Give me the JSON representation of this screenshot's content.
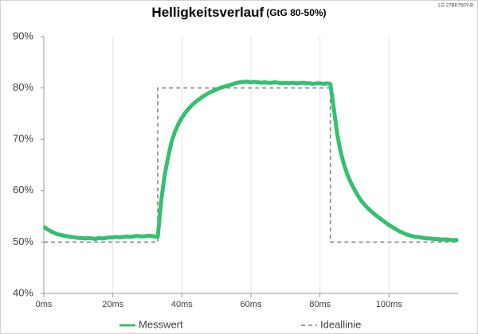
{
  "chart_data": {
    "type": "line",
    "title": "Helligkeitsverlauf",
    "subtitle": "(GtG 80-50%)",
    "annotation": "LG 27BK750Y-B",
    "xlim": [
      0,
      120
    ],
    "ylim": [
      40,
      90
    ],
    "xticks": [
      {
        "value": 0,
        "label": "0ms"
      },
      {
        "value": 20,
        "label": "20ms"
      },
      {
        "value": 40,
        "label": "40ms"
      },
      {
        "value": 60,
        "label": "60ms"
      },
      {
        "value": 80,
        "label": "80ms"
      },
      {
        "value": 100,
        "label": "100ms"
      }
    ],
    "yticks": [
      {
        "value": 40,
        "label": "40%"
      },
      {
        "value": 50,
        "label": "50%"
      },
      {
        "value": 60,
        "label": "60%"
      },
      {
        "value": 70,
        "label": "70%"
      },
      {
        "value": 80,
        "label": "80%"
      },
      {
        "value": 90,
        "label": "90%"
      }
    ],
    "grid": true,
    "legend": "bottom",
    "series": [
      {
        "name": "Messwert",
        "color": "#34c070",
        "dash": false,
        "x": [
          0,
          1,
          2,
          3,
          4,
          5,
          6,
          7,
          8,
          9,
          10,
          11,
          12,
          13,
          14,
          15,
          16,
          17,
          18,
          19,
          20,
          21,
          22,
          23,
          24,
          25,
          26,
          27,
          28,
          29,
          30,
          31,
          32,
          33,
          34,
          35,
          36,
          37,
          38,
          39,
          40,
          41,
          42,
          43,
          44,
          45,
          46,
          47,
          48,
          49,
          50,
          51,
          52,
          53,
          54,
          55,
          56,
          57,
          58,
          59,
          60,
          61,
          62,
          63,
          64,
          65,
          66,
          67,
          68,
          69,
          70,
          71,
          72,
          73,
          74,
          75,
          76,
          77,
          78,
          79,
          80,
          81,
          82,
          83,
          84,
          85,
          86,
          87,
          88,
          89,
          90,
          91,
          92,
          93,
          94,
          95,
          96,
          97,
          98,
          99,
          100,
          101,
          102,
          103,
          104,
          105,
          106,
          107,
          108,
          109,
          110,
          111,
          112,
          113,
          114,
          115,
          116,
          117,
          118,
          119,
          120
        ],
        "values": [
          53,
          52.5,
          52.1,
          51.8,
          51.5,
          51.4,
          51.2,
          51.1,
          51,
          50.9,
          50.8,
          50.8,
          50.7,
          50.8,
          50.7,
          50.6,
          50.8,
          50.7,
          50.8,
          50.9,
          50.9,
          51,
          50.9,
          51,
          51.1,
          51,
          51.1,
          51.2,
          51.1,
          51.1,
          51.2,
          51.2,
          51.1,
          51,
          58,
          63,
          66.5,
          69.5,
          71.5,
          73,
          74.2,
          75.2,
          76,
          76.7,
          77.3,
          77.8,
          78.3,
          78.7,
          79.1,
          79.4,
          79.7,
          80,
          80.2,
          80.4,
          80.6,
          80.8,
          81,
          81.1,
          81.2,
          81.2,
          81.1,
          81.2,
          81.1,
          81,
          81.1,
          81,
          81,
          81.1,
          81,
          80.9,
          81,
          80.9,
          81,
          80.9,
          80.9,
          81,
          80.9,
          80.9,
          80.8,
          80.9,
          80.9,
          80.8,
          80.9,
          80.8,
          76,
          71,
          67.5,
          65,
          63,
          61.5,
          60.2,
          59,
          58,
          57.2,
          56.5,
          55.9,
          55.3,
          54.8,
          54.3,
          53.8,
          53.3,
          52.9,
          52.5,
          52.1,
          51.8,
          51.5,
          51.3,
          51.1,
          51,
          50.9,
          50.8,
          50.7,
          50.7,
          50.6,
          50.6,
          50.5,
          50.5,
          50.5,
          50.4,
          50.4,
          50.4
        ]
      },
      {
        "name": "Ideallinie",
        "color": "#7f7f7f",
        "dash": true,
        "x": [
          0,
          33,
          33,
          83,
          83,
          120
        ],
        "values": [
          50,
          50,
          80,
          80,
          50,
          50
        ]
      }
    ]
  }
}
